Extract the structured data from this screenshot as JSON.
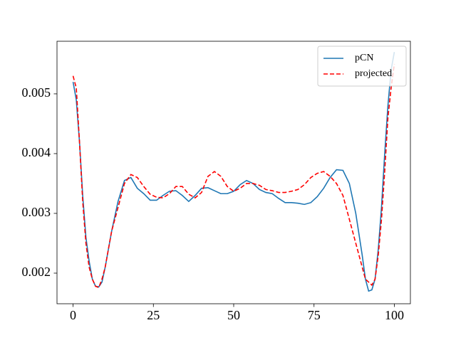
{
  "chart_data": {
    "type": "line",
    "x": [
      0,
      1,
      2,
      3,
      4,
      5,
      6,
      7,
      8,
      9,
      10,
      12,
      14,
      16,
      18,
      20,
      22,
      24,
      26,
      28,
      30,
      32,
      34,
      36,
      38,
      40,
      42,
      44,
      46,
      48,
      50,
      52,
      54,
      56,
      58,
      60,
      62,
      64,
      66,
      68,
      70,
      72,
      74,
      76,
      78,
      80,
      82,
      84,
      86,
      88,
      90,
      91,
      92,
      93,
      94,
      95,
      96,
      97,
      98,
      99,
      100
    ],
    "series": [
      {
        "name": "pCN",
        "color": "#1f77b4",
        "linestyle": "solid",
        "values": [
          0.0052,
          0.0049,
          0.0042,
          0.0033,
          0.0026,
          0.0022,
          0.0019,
          0.00178,
          0.00177,
          0.00185,
          0.0021,
          0.0027,
          0.0032,
          0.00355,
          0.0036,
          0.00342,
          0.00333,
          0.00322,
          0.00322,
          0.0033,
          0.00337,
          0.00338,
          0.0033,
          0.0032,
          0.0033,
          0.00342,
          0.00343,
          0.00338,
          0.00333,
          0.00333,
          0.00337,
          0.00348,
          0.00355,
          0.0035,
          0.0034,
          0.00335,
          0.00333,
          0.00325,
          0.00318,
          0.00318,
          0.00317,
          0.00315,
          0.00318,
          0.00328,
          0.00342,
          0.0036,
          0.00373,
          0.00372,
          0.0035,
          0.003,
          0.0023,
          0.0019,
          0.0017,
          0.00172,
          0.0019,
          0.0024,
          0.0031,
          0.004,
          0.0048,
          0.0054,
          0.0057
        ]
      },
      {
        "name": "projected",
        "color": "#ff0000",
        "linestyle": "dashed",
        "values": [
          0.0053,
          0.0051,
          0.0042,
          0.0032,
          0.0025,
          0.0021,
          0.0019,
          0.00178,
          0.00176,
          0.0019,
          0.0021,
          0.0027,
          0.0031,
          0.0035,
          0.00365,
          0.0036,
          0.00345,
          0.00332,
          0.00327,
          0.00326,
          0.00333,
          0.00345,
          0.00345,
          0.00332,
          0.00326,
          0.00335,
          0.00362,
          0.0037,
          0.00362,
          0.00345,
          0.00337,
          0.00342,
          0.0035,
          0.0035,
          0.00347,
          0.0034,
          0.00338,
          0.00335,
          0.00335,
          0.00337,
          0.0034,
          0.00348,
          0.0036,
          0.00367,
          0.0037,
          0.00362,
          0.0035,
          0.0033,
          0.0029,
          0.0025,
          0.0021,
          0.0019,
          0.00185,
          0.0018,
          0.0019,
          0.0023,
          0.0029,
          0.0037,
          0.0046,
          0.0051,
          0.0055
        ]
      }
    ],
    "xlim": [
      -5,
      105
    ],
    "xticks": [
      0,
      25,
      50,
      75,
      100
    ],
    "ylim": [
      0.001488,
      0.00588
    ],
    "yticks": [
      0.002,
      0.003,
      0.004,
      0.005
    ],
    "grid": false,
    "legend": "upper right"
  }
}
